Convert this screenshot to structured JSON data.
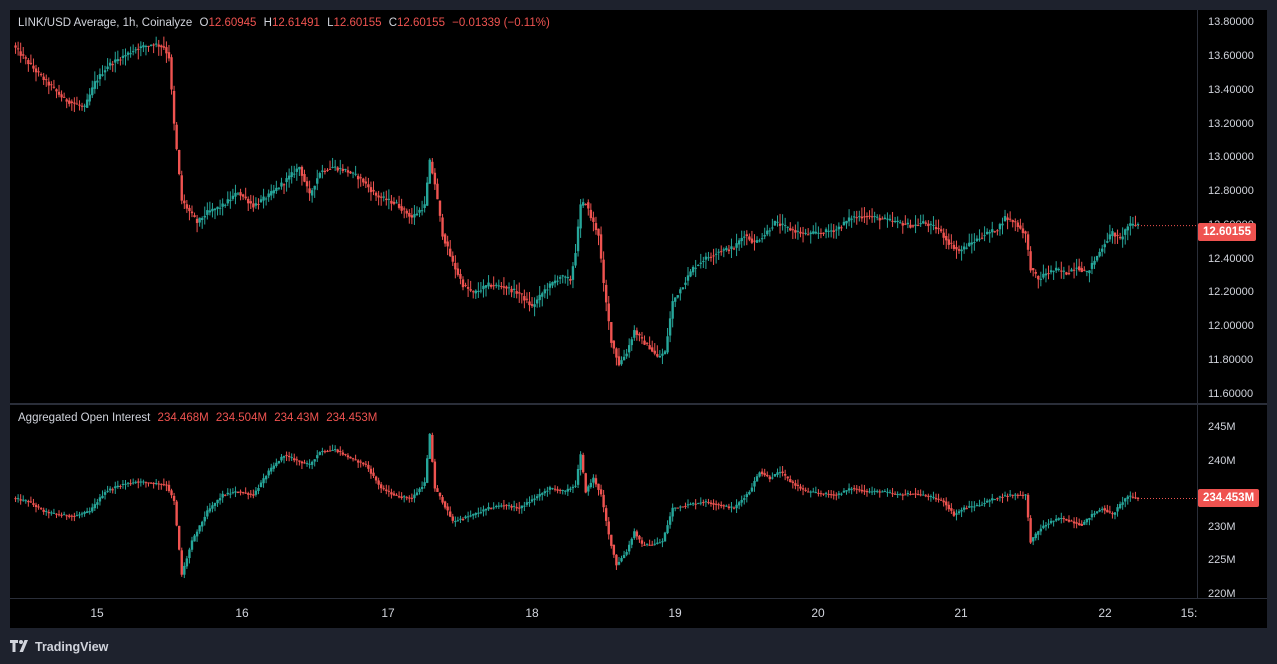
{
  "price_pane": {
    "symbol": "LINK/USD Average, 1h, Coinalyze",
    "o_label": "O",
    "o_value": "12.60945",
    "h_label": "H",
    "h_value": "12.61491",
    "l_label": "L",
    "l_value": "12.60155",
    "c_label": "C",
    "c_value": "12.60155",
    "change": "−0.01339 (−0.11%)",
    "last_price_tag": "12.60155",
    "y_ticks": [
      "13.80000",
      "13.60000",
      "13.40000",
      "13.20000",
      "13.00000",
      "12.80000",
      "12.60000",
      "12.40000",
      "12.20000",
      "12.00000",
      "11.80000",
      "11.60000"
    ]
  },
  "oi_pane": {
    "title": "Aggregated Open Interest",
    "o_value": "234.468M",
    "h_value": "234.504M",
    "l_value": "234.43M",
    "c_value": "234.453M",
    "last_value_tag": "234.453M",
    "y_ticks": [
      "245M",
      "240M",
      "235M",
      "230M",
      "225M",
      "220M"
    ]
  },
  "x_axis": {
    "labels": [
      "15",
      "16",
      "17",
      "18",
      "19",
      "20",
      "21",
      "22",
      "15:"
    ]
  },
  "footer": {
    "brand": "TradingView"
  },
  "colors": {
    "up": "#26a69a",
    "down": "#ef5350",
    "background": "#000000",
    "text": "#d1d4dc"
  },
  "chart_data": [
    {
      "type": "candlestick",
      "title": "LINK/USD Average, 1h, Coinalyze",
      "ylim": [
        11.55,
        13.88
      ],
      "last_value": 12.60155,
      "x_label_days": [
        "15",
        "16",
        "17",
        "18",
        "19",
        "20",
        "21",
        "22"
      ],
      "close_path": [
        {
          "t": 0,
          "v": 13.67
        },
        {
          "t": 4,
          "v": 13.6
        },
        {
          "t": 10,
          "v": 13.5
        },
        {
          "t": 20,
          "v": 13.35
        },
        {
          "t": 28,
          "v": 13.3
        },
        {
          "t": 32,
          "v": 13.45
        },
        {
          "t": 37,
          "v": 13.55
        },
        {
          "t": 48,
          "v": 13.65
        },
        {
          "t": 55,
          "v": 13.68
        },
        {
          "t": 59,
          "v": 13.66
        },
        {
          "t": 61,
          "v": 13.6
        },
        {
          "t": 63,
          "v": 13.2
        },
        {
          "t": 66,
          "v": 12.75
        },
        {
          "t": 72,
          "v": 12.62
        },
        {
          "t": 76,
          "v": 12.68
        },
        {
          "t": 82,
          "v": 12.72
        },
        {
          "t": 88,
          "v": 12.8
        },
        {
          "t": 94,
          "v": 12.72
        },
        {
          "t": 100,
          "v": 12.78
        },
        {
          "t": 106,
          "v": 12.86
        },
        {
          "t": 112,
          "v": 12.95
        },
        {
          "t": 116,
          "v": 12.78
        },
        {
          "t": 120,
          "v": 12.92
        },
        {
          "t": 125,
          "v": 12.95
        },
        {
          "t": 130,
          "v": 12.93
        },
        {
          "t": 136,
          "v": 12.88
        },
        {
          "t": 142,
          "v": 12.78
        },
        {
          "t": 150,
          "v": 12.73
        },
        {
          "t": 156,
          "v": 12.65
        },
        {
          "t": 161,
          "v": 12.72
        },
        {
          "t": 163,
          "v": 12.98
        },
        {
          "t": 165,
          "v": 12.85
        },
        {
          "t": 168,
          "v": 12.55
        },
        {
          "t": 172,
          "v": 12.38
        },
        {
          "t": 176,
          "v": 12.25
        },
        {
          "t": 180,
          "v": 12.2
        },
        {
          "t": 186,
          "v": 12.25
        },
        {
          "t": 192,
          "v": 12.24
        },
        {
          "t": 198,
          "v": 12.2
        },
        {
          "t": 203,
          "v": 12.12
        },
        {
          "t": 208,
          "v": 12.22
        },
        {
          "t": 214,
          "v": 12.3
        },
        {
          "t": 218,
          "v": 12.28
        },
        {
          "t": 220,
          "v": 12.45
        },
        {
          "t": 222,
          "v": 12.72
        },
        {
          "t": 224,
          "v": 12.74
        },
        {
          "t": 226,
          "v": 12.65
        },
        {
          "t": 229,
          "v": 12.55
        },
        {
          "t": 231,
          "v": 12.25
        },
        {
          "t": 234,
          "v": 11.92
        },
        {
          "t": 237,
          "v": 11.78
        },
        {
          "t": 240,
          "v": 11.85
        },
        {
          "t": 243,
          "v": 11.98
        },
        {
          "t": 246,
          "v": 11.92
        },
        {
          "t": 249,
          "v": 11.88
        },
        {
          "t": 252,
          "v": 11.82
        },
        {
          "t": 255,
          "v": 11.85
        },
        {
          "t": 258,
          "v": 12.15
        },
        {
          "t": 262,
          "v": 12.25
        },
        {
          "t": 266,
          "v": 12.35
        },
        {
          "t": 270,
          "v": 12.4
        },
        {
          "t": 276,
          "v": 12.45
        },
        {
          "t": 282,
          "v": 12.47
        },
        {
          "t": 286,
          "v": 12.55
        },
        {
          "t": 290,
          "v": 12.5
        },
        {
          "t": 294,
          "v": 12.55
        },
        {
          "t": 298,
          "v": 12.62
        },
        {
          "t": 304,
          "v": 12.58
        },
        {
          "t": 310,
          "v": 12.55
        },
        {
          "t": 316,
          "v": 12.56
        },
        {
          "t": 322,
          "v": 12.58
        },
        {
          "t": 328,
          "v": 12.65
        },
        {
          "t": 334,
          "v": 12.66
        },
        {
          "t": 340,
          "v": 12.64
        },
        {
          "t": 346,
          "v": 12.62
        },
        {
          "t": 352,
          "v": 12.6
        },
        {
          "t": 356,
          "v": 12.62
        },
        {
          "t": 362,
          "v": 12.58
        },
        {
          "t": 366,
          "v": 12.5
        },
        {
          "t": 370,
          "v": 12.45
        },
        {
          "t": 375,
          "v": 12.5
        },
        {
          "t": 380,
          "v": 12.55
        },
        {
          "t": 385,
          "v": 12.58
        },
        {
          "t": 388,
          "v": 12.65
        },
        {
          "t": 392,
          "v": 12.62
        },
        {
          "t": 396,
          "v": 12.55
        },
        {
          "t": 398,
          "v": 12.35
        },
        {
          "t": 401,
          "v": 12.28
        },
        {
          "t": 404,
          "v": 12.32
        },
        {
          "t": 408,
          "v": 12.34
        },
        {
          "t": 412,
          "v": 12.32
        },
        {
          "t": 416,
          "v": 12.36
        },
        {
          "t": 420,
          "v": 12.32
        },
        {
          "t": 424,
          "v": 12.42
        },
        {
          "t": 427,
          "v": 12.5
        },
        {
          "t": 430,
          "v": 12.56
        },
        {
          "t": 433,
          "v": 12.52
        },
        {
          "t": 436,
          "v": 12.6
        },
        {
          "t": 440,
          "v": 12.61
        }
      ]
    },
    {
      "type": "candlestick",
      "title": "Aggregated Open Interest",
      "unit": "M",
      "ylim": [
        219.5,
        248.5
      ],
      "last_value": 234.453,
      "close_path": [
        {
          "t": 0,
          "v": 234.5
        },
        {
          "t": 6,
          "v": 234.0
        },
        {
          "t": 12,
          "v": 232.5
        },
        {
          "t": 18,
          "v": 232.0
        },
        {
          "t": 24,
          "v": 231.8
        },
        {
          "t": 30,
          "v": 232.5
        },
        {
          "t": 36,
          "v": 235.5
        },
        {
          "t": 42,
          "v": 236.5
        },
        {
          "t": 48,
          "v": 237.0
        },
        {
          "t": 54,
          "v": 236.8
        },
        {
          "t": 60,
          "v": 236.5
        },
        {
          "t": 63,
          "v": 234.0
        },
        {
          "t": 66,
          "v": 223.0
        },
        {
          "t": 70,
          "v": 228.0
        },
        {
          "t": 76,
          "v": 232.5
        },
        {
          "t": 82,
          "v": 235.0
        },
        {
          "t": 88,
          "v": 235.5
        },
        {
          "t": 94,
          "v": 235.0
        },
        {
          "t": 100,
          "v": 238.5
        },
        {
          "t": 106,
          "v": 241.0
        },
        {
          "t": 112,
          "v": 240.0
        },
        {
          "t": 116,
          "v": 239.5
        },
        {
          "t": 120,
          "v": 241.5
        },
        {
          "t": 126,
          "v": 241.8
        },
        {
          "t": 132,
          "v": 240.5
        },
        {
          "t": 138,
          "v": 239.5
        },
        {
          "t": 144,
          "v": 236.0
        },
        {
          "t": 150,
          "v": 234.8
        },
        {
          "t": 156,
          "v": 234.5
        },
        {
          "t": 161,
          "v": 236.8
        },
        {
          "t": 163,
          "v": 244.0
        },
        {
          "t": 165,
          "v": 236.0
        },
        {
          "t": 168,
          "v": 234.0
        },
        {
          "t": 172,
          "v": 231.0
        },
        {
          "t": 176,
          "v": 231.5
        },
        {
          "t": 180,
          "v": 232.0
        },
        {
          "t": 186,
          "v": 233.0
        },
        {
          "t": 192,
          "v": 233.5
        },
        {
          "t": 198,
          "v": 233.0
        },
        {
          "t": 204,
          "v": 234.5
        },
        {
          "t": 210,
          "v": 236.0
        },
        {
          "t": 216,
          "v": 235.5
        },
        {
          "t": 220,
          "v": 236.5
        },
        {
          "t": 222,
          "v": 241.0
        },
        {
          "t": 224,
          "v": 235.5
        },
        {
          "t": 227,
          "v": 237.5
        },
        {
          "t": 230,
          "v": 235.0
        },
        {
          "t": 233,
          "v": 229.0
        },
        {
          "t": 236,
          "v": 224.5
        },
        {
          "t": 240,
          "v": 226.5
        },
        {
          "t": 243,
          "v": 229.5
        },
        {
          "t": 246,
          "v": 227.5
        },
        {
          "t": 250,
          "v": 227.5
        },
        {
          "t": 254,
          "v": 228.0
        },
        {
          "t": 258,
          "v": 233.0
        },
        {
          "t": 264,
          "v": 233.5
        },
        {
          "t": 270,
          "v": 234.0
        },
        {
          "t": 276,
          "v": 233.5
        },
        {
          "t": 282,
          "v": 233.0
        },
        {
          "t": 288,
          "v": 235.5
        },
        {
          "t": 292,
          "v": 238.5
        },
        {
          "t": 296,
          "v": 237.5
        },
        {
          "t": 300,
          "v": 238.5
        },
        {
          "t": 304,
          "v": 237.0
        },
        {
          "t": 310,
          "v": 235.5
        },
        {
          "t": 316,
          "v": 235.2
        },
        {
          "t": 322,
          "v": 235.0
        },
        {
          "t": 328,
          "v": 236.0
        },
        {
          "t": 334,
          "v": 235.5
        },
        {
          "t": 340,
          "v": 235.5
        },
        {
          "t": 346,
          "v": 235.0
        },
        {
          "t": 352,
          "v": 235.2
        },
        {
          "t": 358,
          "v": 234.8
        },
        {
          "t": 364,
          "v": 234.0
        },
        {
          "t": 368,
          "v": 232.0
        },
        {
          "t": 372,
          "v": 233.0
        },
        {
          "t": 378,
          "v": 233.5
        },
        {
          "t": 384,
          "v": 234.5
        },
        {
          "t": 390,
          "v": 235.0
        },
        {
          "t": 396,
          "v": 235.0
        },
        {
          "t": 398,
          "v": 228.0
        },
        {
          "t": 402,
          "v": 230.0
        },
        {
          "t": 406,
          "v": 231.0
        },
        {
          "t": 410,
          "v": 231.5
        },
        {
          "t": 414,
          "v": 231.0
        },
        {
          "t": 418,
          "v": 230.5
        },
        {
          "t": 422,
          "v": 232.0
        },
        {
          "t": 426,
          "v": 233.0
        },
        {
          "t": 430,
          "v": 232.0
        },
        {
          "t": 434,
          "v": 234.0
        },
        {
          "t": 436,
          "v": 234.8
        },
        {
          "t": 440,
          "v": 234.45
        }
      ]
    }
  ]
}
